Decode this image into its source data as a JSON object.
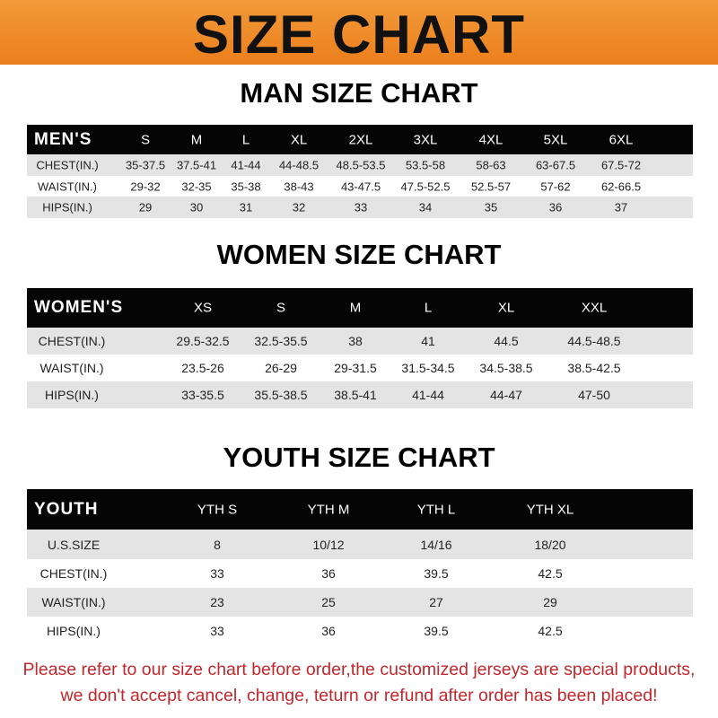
{
  "banner": {
    "title": "SIZE CHART",
    "color": "#ee8a2a"
  },
  "men": {
    "heading": "MAN SIZE CHART",
    "columns": [
      "MEN'S",
      "S",
      "M",
      "L",
      "XL",
      "2XL",
      "3XL",
      "4XL",
      "5XL",
      "6XL"
    ],
    "rows": [
      [
        "CHEST(IN.)",
        "35-37.5",
        "37.5-41",
        "41-44",
        "44-48.5",
        "48.5-53.5",
        "53.5-58",
        "58-63",
        "63-67.5",
        "67.5-72"
      ],
      [
        "WAIST(IN.)",
        "29-32",
        "32-35",
        "35-38",
        "38-43",
        "43-47.5",
        "47.5-52.5",
        "52.5-57",
        "57-62",
        "62-66.5"
      ],
      [
        "HIPS(IN.)",
        "29",
        "30",
        "31",
        "32",
        "33",
        "34",
        "35",
        "36",
        "37"
      ]
    ]
  },
  "women": {
    "heading": "WOMEN SIZE CHART",
    "columns": [
      "WOMEN'S",
      "XS",
      "S",
      "M",
      "L",
      "XL",
      "XXL"
    ],
    "rows": [
      [
        "CHEST(IN.)",
        "29.5-32.5",
        "32.5-35.5",
        "38",
        "41",
        "44.5",
        "44.5-48.5"
      ],
      [
        "WAIST(IN.)",
        "23.5-26",
        "26-29",
        "29-31.5",
        "31.5-34.5",
        "34.5-38.5",
        "38.5-42.5"
      ],
      [
        "HIPS(IN.)",
        "33-35.5",
        "35.5-38.5",
        "38.5-41",
        "41-44",
        "44-47",
        "47-50"
      ]
    ]
  },
  "youth": {
    "heading": "YOUTH SIZE CHART",
    "columns": [
      "YOUTH",
      "YTH S",
      "YTH M",
      "YTH L",
      "YTH XL"
    ],
    "rows": [
      [
        "U.S.SIZE",
        "8",
        "10/12",
        "14/16",
        "18/20"
      ],
      [
        "CHEST(IN.)",
        "33",
        "36",
        "39.5",
        "42.5"
      ],
      [
        "WAIST(IN.)",
        "23",
        "25",
        "27",
        "29"
      ],
      [
        "HIPS(IN.)",
        "33",
        "36",
        "39.5",
        "42.5"
      ]
    ]
  },
  "notice": {
    "line1": "Please refer to our size chart before order,the customized jerseys are special products,",
    "line2": "we don't accept cancel, change, teturn or refund after order has been placed!",
    "color": "#c3272b"
  }
}
